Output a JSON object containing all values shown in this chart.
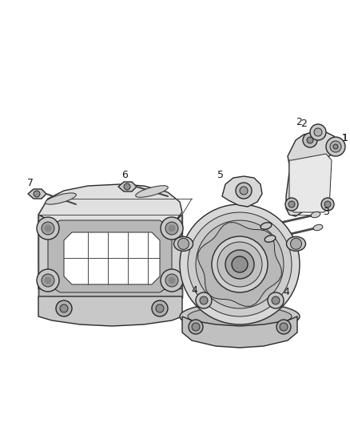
{
  "bg_color": "#ffffff",
  "line_color": "#4a4a4a",
  "dark_color": "#2a2a2a",
  "gray1": "#c8c8c8",
  "gray2": "#b0b0b0",
  "gray3": "#d8d8d8",
  "gray4": "#e8e8e8",
  "label_color": "#1a1a1a",
  "fig_width": 4.38,
  "fig_height": 5.33,
  "dpi": 100
}
